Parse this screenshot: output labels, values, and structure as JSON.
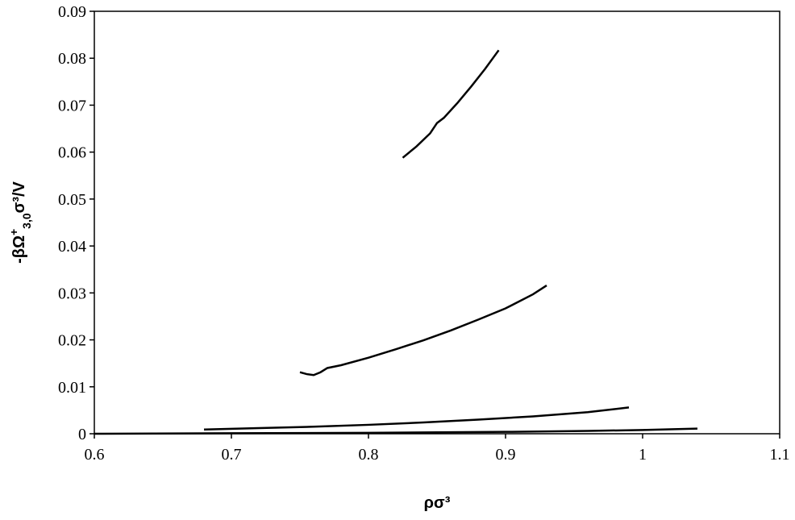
{
  "chart_data": {
    "type": "line",
    "x_label": "ρσ³",
    "y_label": {
      "main": "-βΩ",
      "sup": "+",
      "sub": "3,0",
      "tail": "σ³/V"
    },
    "xlim": [
      0.6,
      1.1
    ],
    "xticks": [
      0.6,
      0.7,
      0.8,
      0.9,
      1,
      1.1
    ],
    "ylim": [
      0,
      0.09
    ],
    "yticks": [
      0,
      0.01,
      0.02,
      0.03,
      0.04,
      0.05,
      0.06,
      0.07,
      0.08,
      0.09
    ],
    "grid": false,
    "series": [
      {
        "color": "#000000",
        "x": [
          0.825,
          0.835,
          0.845,
          0.85,
          0.855,
          0.865,
          0.875,
          0.885,
          0.895
        ],
        "values": [
          0.0588,
          0.0612,
          0.064,
          0.0662,
          0.0673,
          0.0705,
          0.074,
          0.0777,
          0.0817
        ]
      },
      {
        "color": "#000000",
        "x": [
          0.75,
          0.755,
          0.76,
          0.765,
          0.77,
          0.78,
          0.8,
          0.82,
          0.84,
          0.86,
          0.88,
          0.9,
          0.92,
          0.93
        ],
        "values": [
          0.0131,
          0.0127,
          0.0125,
          0.0131,
          0.014,
          0.0146,
          0.0162,
          0.018,
          0.0199,
          0.022,
          0.0243,
          0.0267,
          0.0297,
          0.0316
        ]
      },
      {
        "color": "#000000",
        "x": [
          0.68,
          0.72,
          0.76,
          0.8,
          0.84,
          0.88,
          0.92,
          0.96,
          0.99
        ],
        "values": [
          0.0009,
          0.0012,
          0.0015,
          0.0019,
          0.0024,
          0.003,
          0.0037,
          0.0046,
          0.0056
        ]
      },
      {
        "color": "#000000",
        "x": [
          0.6,
          0.7,
          0.8,
          0.9,
          0.96,
          1.0,
          1.04
        ],
        "values": [
          0,
          0.0001,
          0.0002,
          0.0004,
          0.0006,
          0.0008,
          0.0011
        ]
      }
    ]
  }
}
